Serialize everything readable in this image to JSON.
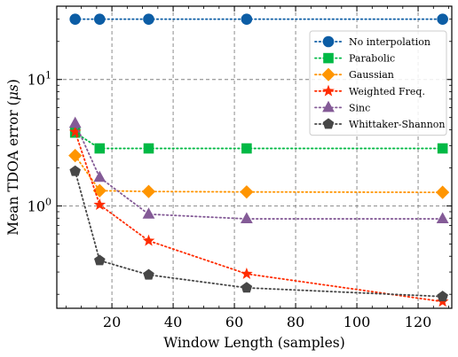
{
  "chart_data": {
    "type": "line",
    "title": "",
    "xlabel": "Window Length (samples)",
    "ylabel_prefix": "Mean TDOA error (",
    "ylabel_unit": "μs",
    "ylabel_suffix": ")",
    "xscale": "linear",
    "yscale": "log",
    "xlim": [
      2,
      131
    ],
    "ylim": [
      0.155,
      38
    ],
    "grid": true,
    "legend_position": "top-right",
    "x_ticks": [
      20,
      40,
      60,
      80,
      100,
      120
    ],
    "x_tick_labels": [
      "20",
      "40",
      "60",
      "80",
      "100",
      "120"
    ],
    "y_major_ticks": [
      1,
      10
    ],
    "y_tick_labels": [
      {
        "base": "10",
        "exp": "0"
      },
      {
        "base": "10",
        "exp": "1"
      }
    ],
    "x": [
      8,
      16,
      32,
      64,
      128
    ],
    "series": [
      {
        "name": "No interpolation",
        "color": "#0C5DA5",
        "marker": "circle",
        "values": [
          30,
          30,
          30,
          30,
          30
        ]
      },
      {
        "name": "Parabolic",
        "color": "#00B945",
        "marker": "square",
        "values": [
          3.8,
          2.85,
          2.85,
          2.85,
          2.85
        ]
      },
      {
        "name": "Gaussian",
        "color": "#FF9500",
        "marker": "diamond",
        "values": [
          2.5,
          1.32,
          1.3,
          1.29,
          1.28
        ]
      },
      {
        "name": "Weighted Freq.",
        "color": "#FF2C00",
        "marker": "star",
        "values": [
          3.85,
          1.02,
          0.53,
          0.29,
          0.175
        ]
      },
      {
        "name": "Sinc",
        "color": "#845B97",
        "marker": "triangle",
        "values": [
          4.5,
          1.68,
          0.86,
          0.79,
          0.79
        ]
      },
      {
        "name": "Whittaker-Shannon",
        "color": "#474747",
        "marker": "pentagon",
        "values": [
          1.88,
          0.37,
          0.285,
          0.225,
          0.192
        ]
      }
    ]
  }
}
